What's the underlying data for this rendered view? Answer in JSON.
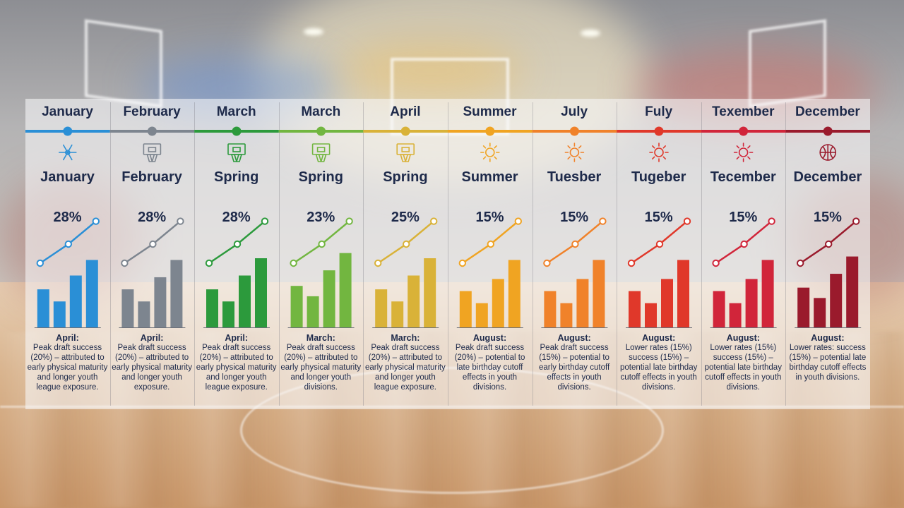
{
  "theme": {
    "text_color": "#1e2a4a",
    "baseline_color": "#6b6f78",
    "column_colors": [
      "#2a8fd6",
      "#7d858f",
      "#2c9a3c",
      "#72b640",
      "#d9b238",
      "#f0a422",
      "#f0822a",
      "#e0382a",
      "#d1253a",
      "#9a1a2c"
    ]
  },
  "chart_data": {
    "type": "bar",
    "columns": [
      {
        "month": "January",
        "season": "Spring"
      },
      {
        "month": "February",
        "season": "Spring"
      },
      {
        "month": "March",
        "season": "Spring"
      },
      {
        "month": "March",
        "season": "Spring"
      },
      {
        "month": "April",
        "season": "Spring"
      },
      {
        "month": "Summer",
        "season": "Summer"
      },
      {
        "month": "July",
        "season": "Tuesber"
      },
      {
        "month": "Fuly",
        "season": "Tugeber"
      },
      {
        "month": "Texember",
        "season": "Tecember"
      },
      {
        "month": "December",
        "season": "December"
      }
    ]
  },
  "columns": [
    {
      "month": "January",
      "icon": "snowflake-icon",
      "season": "January",
      "percent": "28%",
      "line": [
        1,
        2,
        3.2
      ],
      "bars": [
        2.2,
        1.5,
        3.0,
        3.9
      ],
      "note_head": "April:",
      "note_body": "Peak draft success (20%) – attributed to early physical maturity and longer youth league exposure."
    },
    {
      "month": "February",
      "icon": "basketball-hoop-icon",
      "season": "February",
      "percent": "28%",
      "line": [
        1,
        2,
        3.2
      ],
      "bars": [
        2.2,
        1.5,
        2.9,
        3.9
      ],
      "note_head": "April:",
      "note_body": "Peak draft success (20%) – attributed to early physical maturity and longer youth exposure."
    },
    {
      "month": "March",
      "icon": "basketball-hoop-icon",
      "season": "Spring",
      "percent": "28%",
      "line": [
        1,
        2,
        3.2
      ],
      "bars": [
        2.2,
        1.5,
        3.0,
        4.0
      ],
      "note_head": "April:",
      "note_body": "Peak draft success (20%) – attributed to early physical maturity and longer youth league exposure."
    },
    {
      "month": "March",
      "icon": "basketball-hoop-icon",
      "season": "Spring",
      "percent": "23%",
      "line": [
        1,
        2,
        3.2
      ],
      "bars": [
        2.4,
        1.8,
        3.3,
        4.3
      ],
      "note_head": "March:",
      "note_body": "Peak draft success (20%) – attributed to early physical maturity and longer youth divisions."
    },
    {
      "month": "April",
      "icon": "basketball-hoop-icon",
      "season": "Spring",
      "percent": "25%",
      "line": [
        1,
        2,
        3.2
      ],
      "bars": [
        2.2,
        1.5,
        3.0,
        4.0
      ],
      "note_head": "March:",
      "note_body": "Peak draft success (20%) – attributed to early physical maturity and longer youth league exposure."
    },
    {
      "month": "Summer",
      "icon": "sun-icon",
      "season": "Summer",
      "percent": "15%",
      "line": [
        1,
        2,
        3.2
      ],
      "bars": [
        2.1,
        1.4,
        2.8,
        3.9
      ],
      "note_head": "August:",
      "note_body": "Peak draft success (20%) – potential to late birthday cutoff effects in youth divisions."
    },
    {
      "month": "July",
      "icon": "sun-icon",
      "season": "Tuesber",
      "percent": "15%",
      "line": [
        1,
        2,
        3.2
      ],
      "bars": [
        2.1,
        1.4,
        2.8,
        3.9
      ],
      "note_head": "August:",
      "note_body": "Peak draft success (15%) – potential to early birthday cutoff effects in youth divisions."
    },
    {
      "month": "Fuly",
      "icon": "sun-icon",
      "season": "Tugeber",
      "percent": "15%",
      "line": [
        1,
        2,
        3.2
      ],
      "bars": [
        2.1,
        1.4,
        2.8,
        3.9
      ],
      "note_head": "August:",
      "note_body": "Lower rates (15%) success (15%) – potential late birthday cutoff effects in youth divisions."
    },
    {
      "month": "Texember",
      "icon": "sun-icon",
      "season": "Tecember",
      "percent": "15%",
      "line": [
        1,
        2,
        3.2
      ],
      "bars": [
        2.1,
        1.4,
        2.8,
        3.9
      ],
      "note_head": "August:",
      "note_body": "Lower rates (15%) success (15%) – potential late birthday cutoff effects in youth divisions."
    },
    {
      "month": "December",
      "icon": "basketball-icon",
      "season": "December",
      "percent": "15%",
      "line": [
        1,
        2,
        3.2
      ],
      "bars": [
        2.3,
        1.7,
        3.1,
        4.1
      ],
      "note_head": "August:",
      "note_body": "Lower rates: success (15%) – potential late birthday cutoff effects in youth divisions."
    }
  ]
}
